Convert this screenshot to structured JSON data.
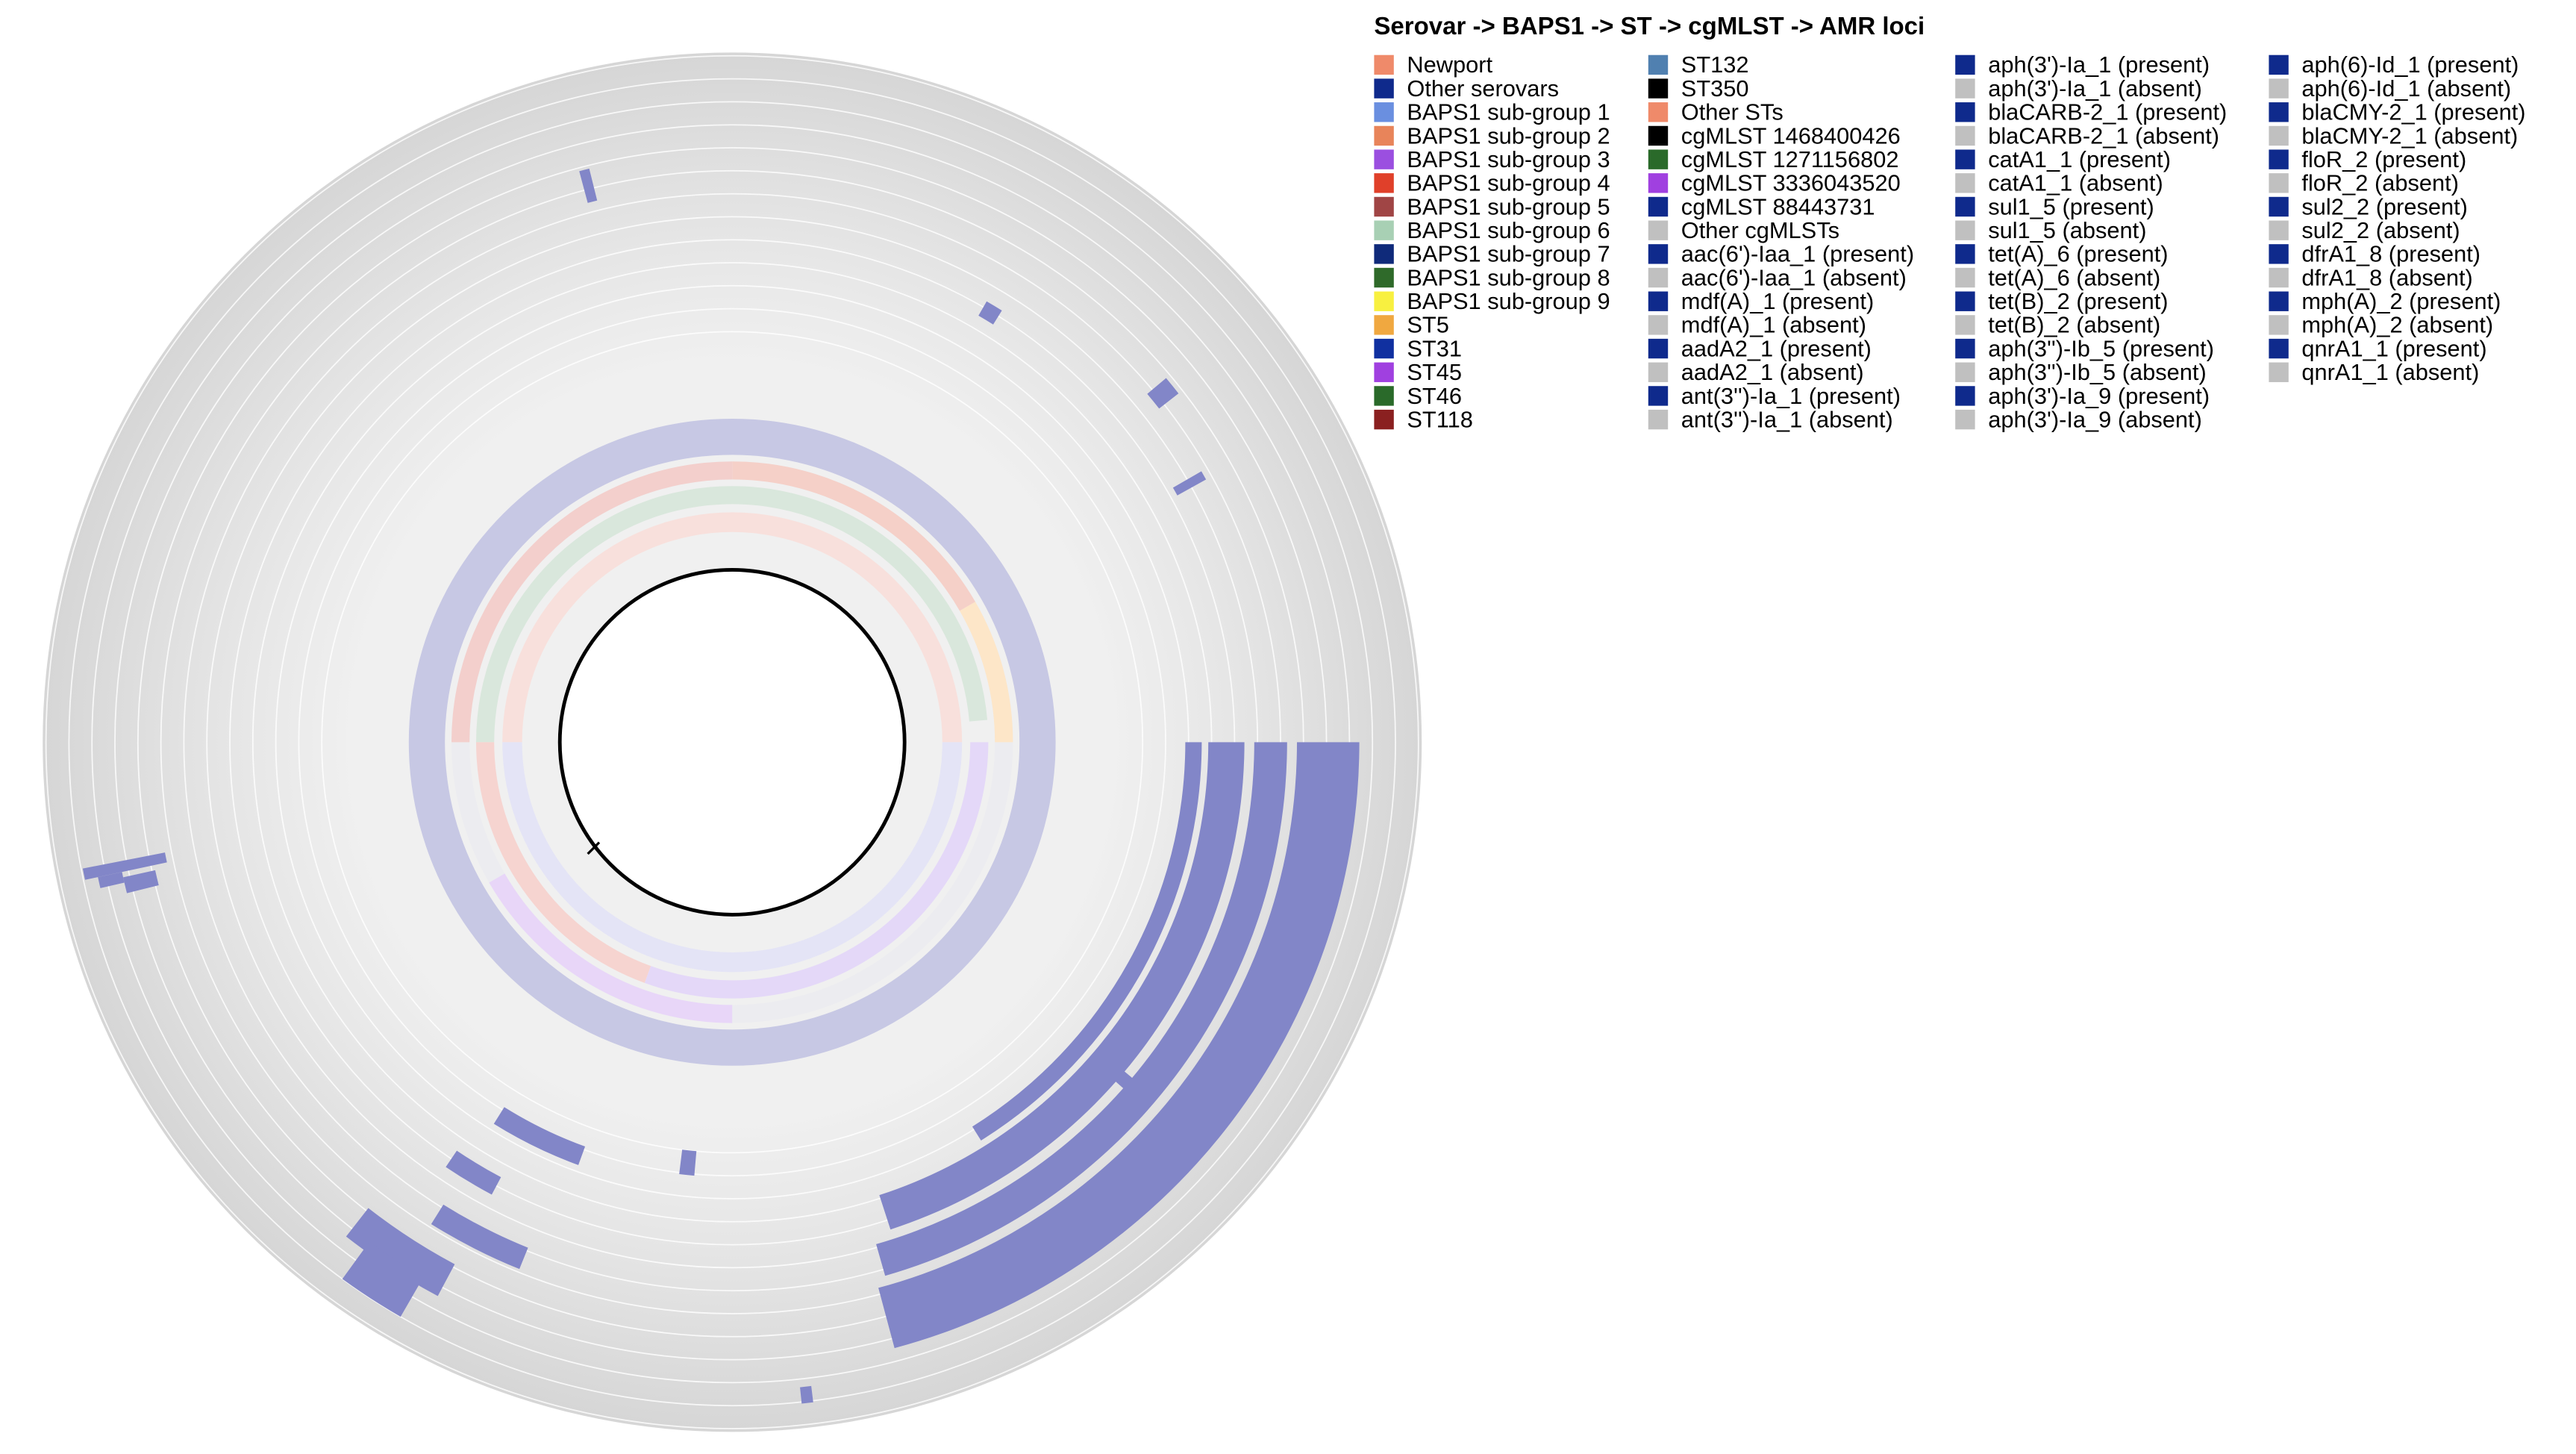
{
  "title": "Serovar -> BAPS1 -> ST -> cgMLST -> AMR loci",
  "legend": {
    "columns": [
      [
        {
          "label": "Newport",
          "color": "#ef8a6a"
        },
        {
          "label": "Other serovars",
          "color": "#0f2a8c"
        },
        {
          "label": "BAPS1 sub-group 1",
          "color": "#6a8fe0"
        },
        {
          "label": "BAPS1 sub-group 2",
          "color": "#e8845a"
        },
        {
          "label": "BAPS1 sub-group 3",
          "color": "#9b4fe0"
        },
        {
          "label": "BAPS1 sub-group 4",
          "color": "#e0402a"
        },
        {
          "label": "BAPS1 sub-group 5",
          "color": "#a04545"
        },
        {
          "label": "BAPS1 sub-group 6",
          "color": "#a8d0b4"
        },
        {
          "label": "BAPS1 sub-group 7",
          "color": "#0f2a7a"
        },
        {
          "label": "BAPS1 sub-group 8",
          "color": "#2f6a2a"
        },
        {
          "label": "BAPS1 sub-group 9",
          "color": "#f8f040"
        },
        {
          "label": "ST5",
          "color": "#f0a840"
        },
        {
          "label": "ST31",
          "color": "#1030a0"
        },
        {
          "label": "ST45",
          "color": "#a040e0"
        },
        {
          "label": "ST46",
          "color": "#2a6a2a"
        },
        {
          "label": "ST118",
          "color": "#8a2020"
        }
      ],
      [
        {
          "label": "ST132",
          "color": "#5080b0"
        },
        {
          "label": "ST350",
          "color": "#000000"
        },
        {
          "label": "Other STs",
          "color": "#ef8a6a"
        },
        {
          "label": "cgMLST 1468400426",
          "color": "#000000"
        },
        {
          "label": "cgMLST 1271156802",
          "color": "#2a6a2a"
        },
        {
          "label": "cgMLST 3336043520",
          "color": "#a040e0"
        },
        {
          "label": "cgMLST 88443731",
          "color": "#0f2a8c"
        },
        {
          "label": "Other cgMLSTs",
          "color": "#c0c0c0"
        },
        {
          "label": "aac(6')-Iaa_1 (present)",
          "color": "#0f2a8c"
        },
        {
          "label": "aac(6')-Iaa_1 (absent)",
          "color": "#c0c0c0"
        },
        {
          "label": "mdf(A)_1 (present)",
          "color": "#0f2a8c"
        },
        {
          "label": "mdf(A)_1 (absent)",
          "color": "#c0c0c0"
        },
        {
          "label": "aadA2_1 (present)",
          "color": "#0f2a8c"
        },
        {
          "label": "aadA2_1 (absent)",
          "color": "#c0c0c0"
        },
        {
          "label": "ant(3'')-Ia_1 (present)",
          "color": "#0f2a8c"
        },
        {
          "label": "ant(3'')-Ia_1 (absent)",
          "color": "#c0c0c0"
        }
      ],
      [
        {
          "label": "aph(3')-Ia_1 (present)",
          "color": "#0f2a8c"
        },
        {
          "label": "aph(3')-Ia_1 (absent)",
          "color": "#c0c0c0"
        },
        {
          "label": "blaCARB-2_1 (present)",
          "color": "#0f2a8c"
        },
        {
          "label": "blaCARB-2_1 (absent)",
          "color": "#c0c0c0"
        },
        {
          "label": "catA1_1 (present)",
          "color": "#0f2a8c"
        },
        {
          "label": "catA1_1 (absent)",
          "color": "#c0c0c0"
        },
        {
          "label": "sul1_5 (present)",
          "color": "#0f2a8c"
        },
        {
          "label": "sul1_5 (absent)",
          "color": "#c0c0c0"
        },
        {
          "label": "tet(A)_6 (present)",
          "color": "#0f2a8c"
        },
        {
          "label": "tet(A)_6 (absent)",
          "color": "#c0c0c0"
        },
        {
          "label": "tet(B)_2 (present)",
          "color": "#0f2a8c"
        },
        {
          "label": "tet(B)_2 (absent)",
          "color": "#c0c0c0"
        },
        {
          "label": "aph(3'')-Ib_5 (present)",
          "color": "#0f2a8c"
        },
        {
          "label": "aph(3'')-Ib_5 (absent)",
          "color": "#c0c0c0"
        },
        {
          "label": "aph(3')-Ia_9 (present)",
          "color": "#0f2a8c"
        },
        {
          "label": "aph(3')-Ia_9 (absent)",
          "color": "#c0c0c0"
        }
      ],
      [
        {
          "label": "aph(6)-Id_1 (present)",
          "color": "#0f2a8c"
        },
        {
          "label": "aph(6)-Id_1 (absent)",
          "color": "#c0c0c0"
        },
        {
          "label": "blaCMY-2_1 (present)",
          "color": "#0f2a8c"
        },
        {
          "label": "blaCMY-2_1 (absent)",
          "color": "#c0c0c0"
        },
        {
          "label": "floR_2 (present)",
          "color": "#0f2a8c"
        },
        {
          "label": "floR_2 (absent)",
          "color": "#c0c0c0"
        },
        {
          "label": "sul2_2 (present)",
          "color": "#0f2a8c"
        },
        {
          "label": "sul2_2 (absent)",
          "color": "#c0c0c0"
        },
        {
          "label": "dfrA1_8 (present)",
          "color": "#0f2a8c"
        },
        {
          "label": "dfrA1_8 (absent)",
          "color": "#c0c0c0"
        },
        {
          "label": "mph(A)_2 (present)",
          "color": "#0f2a8c"
        },
        {
          "label": "mph(A)_2 (absent)",
          "color": "#c0c0c0"
        },
        {
          "label": "qnrA1_1 (present)",
          "color": "#0f2a8c"
        },
        {
          "label": "qnrA1_1 (absent)",
          "color": "#c0c0c0"
        }
      ]
    ]
  }
}
